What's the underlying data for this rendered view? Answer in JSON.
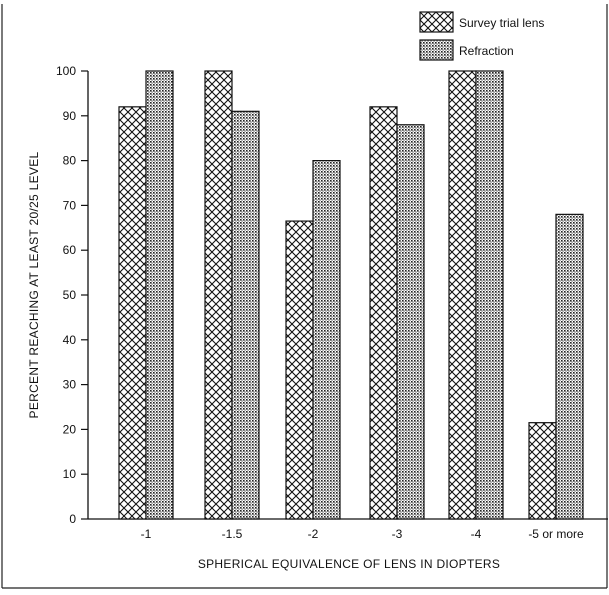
{
  "chart_data": {
    "type": "bar",
    "title": "",
    "xlabel": "SPHERICAL EQUIVALENCE OF LENS IN DIOPTERS",
    "ylabel": "PERCENT REACHING AT LEAST 20/25 LEVEL",
    "ylim": [
      0,
      100
    ],
    "yticks": [
      0,
      10,
      20,
      30,
      40,
      50,
      60,
      70,
      80,
      90,
      100
    ],
    "categories": [
      "-1",
      "-1.5",
      "-2",
      "-3",
      "-4",
      "-5 or more"
    ],
    "series": [
      {
        "name": "Survey trial lens",
        "pattern": "crosshatch",
        "values": [
          92,
          100,
          66.5,
          92,
          100,
          21.5
        ]
      },
      {
        "name": "Refraction",
        "pattern": "stipple",
        "values": [
          100,
          91,
          80,
          88,
          100,
          68
        ]
      }
    ],
    "legend": "top-right",
    "grid": false
  }
}
